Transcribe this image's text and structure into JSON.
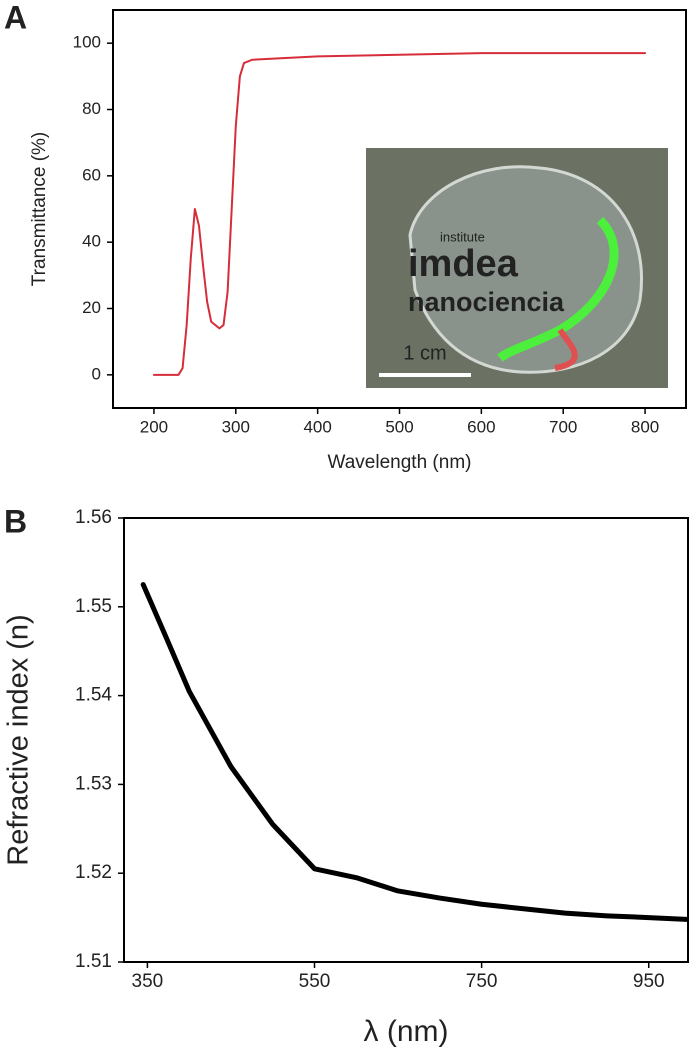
{
  "chart_data": [
    {
      "type": "line",
      "panel_label": "A",
      "x_label": "Wavelength (nm)",
      "y_label": "Transmittance (%)",
      "xlim": [
        150,
        850
      ],
      "ylim": [
        -10,
        110
      ],
      "xticks": [
        200,
        300,
        400,
        500,
        600,
        700,
        800
      ],
      "yticks": [
        0,
        20,
        40,
        60,
        80,
        100
      ],
      "annotation": "1 cm",
      "inset_text": [
        "institute",
        "imdea",
        "nanociencia"
      ],
      "series": [
        {
          "color": "#d62d3a",
          "x": [
            200,
            230,
            235,
            240,
            245,
            250,
            255,
            260,
            265,
            270,
            280,
            285,
            290,
            295,
            300,
            305,
            310,
            320,
            400,
            500,
            600,
            700,
            800
          ],
          "values": [
            0,
            0,
            2,
            15,
            35,
            50,
            45,
            33,
            22,
            16,
            14,
            15,
            25,
            50,
            75,
            90,
            94,
            95,
            96,
            96.5,
            97,
            97,
            97
          ]
        }
      ]
    },
    {
      "type": "line",
      "panel_label": "B",
      "x_label": "λ (nm)",
      "y_label": "Refractive index (n)",
      "xlim": [
        322,
        997
      ],
      "ylim": [
        1.51,
        1.56
      ],
      "xticks": [
        350,
        550,
        750,
        950
      ],
      "yticks": [
        1.51,
        1.52,
        1.53,
        1.54,
        1.55,
        1.56
      ],
      "series": [
        {
          "color": "#000000",
          "x": [
            345,
            375,
            400,
            450,
            500,
            550,
            600,
            650,
            700,
            750,
            800,
            850,
            900,
            950,
            995
          ],
          "values": [
            1.5525,
            1.546,
            1.5405,
            1.532,
            1.5255,
            1.5205,
            1.5195,
            1.518,
            1.5172,
            1.5165,
            1.516,
            1.5155,
            1.5152,
            1.515,
            1.5148
          ]
        }
      ]
    }
  ]
}
